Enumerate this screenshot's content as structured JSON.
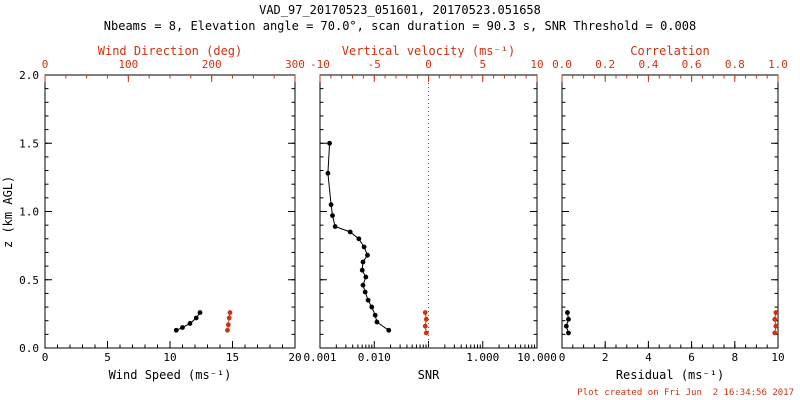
{
  "header": {
    "title": "VAD_97_20170523_051601, 20170523.051658",
    "subtitle": "Nbeams = 8, Elevation angle = 70.0°, scan duration = 90.3 s, SNR Threshold = 0.008"
  },
  "footer": {
    "created": "Plot created on Fri Jun  2 16:34:56 2017"
  },
  "colors": {
    "axis": "#000000",
    "accent_red": "#cc3311",
    "background": "#ffffff"
  },
  "y_axis": {
    "label": "z (km AGL)",
    "min": 0,
    "max": 2,
    "ticks": [
      0,
      0.5,
      1,
      1.5,
      2
    ],
    "tick_labels": [
      "0.0",
      "0.5",
      "1.0",
      "1.5",
      "2.0"
    ],
    "minor_step": 0.1
  },
  "chart_data": [
    {
      "type": "scatter",
      "name": "wind-speed-direction-panel",
      "x_bottom": {
        "label": "Wind Speed (ms⁻¹)",
        "scale": "linear",
        "min": 0,
        "max": 20,
        "ticks": [
          0,
          5,
          10,
          15,
          20
        ],
        "tick_labels": [
          "0",
          "5",
          "10",
          "15",
          "20"
        ],
        "minor_step": 1,
        "color": "#000000"
      },
      "x_top": {
        "label": "Wind Direction (deg)",
        "scale": "linear",
        "min": 0,
        "max": 300,
        "ticks": [
          0,
          100,
          200,
          300
        ],
        "tick_labels": [
          "0",
          "100",
          "200",
          "300"
        ],
        "minor_step": 25,
        "color": "#cc3311"
      },
      "series": [
        {
          "name": "wind-speed",
          "axis": "bottom",
          "color": "#000000",
          "points": [
            [
              10.5,
              0.13
            ],
            [
              11.0,
              0.15
            ],
            [
              11.6,
              0.18
            ],
            [
              12.1,
              0.22
            ],
            [
              12.4,
              0.26
            ]
          ]
        },
        {
          "name": "wind-direction",
          "axis": "top",
          "color": "#cc3311",
          "points": [
            [
              219,
              0.13
            ],
            [
              220,
              0.17
            ],
            [
              221,
              0.22
            ],
            [
              222,
              0.26
            ]
          ]
        }
      ]
    },
    {
      "type": "scatter",
      "name": "snr-vertical-velocity-panel",
      "x_bottom": {
        "label": "SNR",
        "scale": "log",
        "min": 0.001,
        "max": 10,
        "ticks": [
          0.001,
          0.01,
          0.1,
          1,
          10
        ],
        "tick_labels": [
          "0.001",
          "0.010",
          "",
          "1.000",
          "10.000"
        ],
        "color": "#000000"
      },
      "x_top": {
        "label": "Vertical velocity (ms⁻¹)",
        "scale": "linear",
        "min": -10,
        "max": 10,
        "ticks": [
          -10,
          -5,
          0,
          5,
          10
        ],
        "tick_labels": [
          "-10",
          "-5",
          "0",
          "5",
          "10"
        ],
        "minor_step": 1,
        "color": "#cc3311"
      },
      "ref_line": {
        "axis": "top",
        "value": 0,
        "color": "#cc3311",
        "style": "dotted"
      },
      "series": [
        {
          "name": "snr-profile",
          "axis": "bottom",
          "color": "#000000",
          "points": [
            [
              0.0015,
              1.5
            ],
            [
              0.0014,
              1.28
            ],
            [
              0.0016,
              1.05
            ],
            [
              0.0017,
              0.97
            ],
            [
              0.0019,
              0.89
            ],
            [
              0.0036,
              0.85
            ],
            [
              0.0052,
              0.8
            ],
            [
              0.0065,
              0.74
            ],
            [
              0.0075,
              0.68
            ],
            [
              0.0062,
              0.63
            ],
            [
              0.006,
              0.57
            ],
            [
              0.007,
              0.52
            ],
            [
              0.0062,
              0.46
            ],
            [
              0.0068,
              0.41
            ],
            [
              0.0077,
              0.35
            ],
            [
              0.009,
              0.3
            ],
            [
              0.0104,
              0.24
            ],
            [
              0.0112,
              0.19
            ],
            [
              0.0185,
              0.13
            ]
          ]
        },
        {
          "name": "vertical-velocity",
          "axis": "top",
          "color": "#cc3311",
          "points": [
            [
              -0.3,
              0.26
            ],
            [
              -0.2,
              0.21
            ],
            [
              -0.3,
              0.16
            ],
            [
              -0.2,
              0.11
            ]
          ]
        }
      ]
    },
    {
      "type": "scatter",
      "name": "residual-correlation-panel",
      "x_bottom": {
        "label": "Residual (ms⁻¹)",
        "scale": "linear",
        "min": 0,
        "max": 10,
        "ticks": [
          0,
          2,
          4,
          6,
          8,
          10
        ],
        "tick_labels": [
          "0",
          "2",
          "4",
          "6",
          "8",
          "10"
        ],
        "minor_step": 0.5,
        "color": "#000000"
      },
      "x_top": {
        "label": "Correlation",
        "scale": "linear",
        "min": 0,
        "max": 1,
        "ticks": [
          0,
          0.2,
          0.4,
          0.6,
          0.8,
          1
        ],
        "tick_labels": [
          "0.0",
          "0.2",
          "0.4",
          "0.6",
          "0.8",
          "1.0"
        ],
        "minor_step": 0.05,
        "color": "#cc3311"
      },
      "series": [
        {
          "name": "residual",
          "axis": "bottom",
          "color": "#000000",
          "points": [
            [
              0.25,
              0.26
            ],
            [
              0.3,
              0.21
            ],
            [
              0.2,
              0.16
            ],
            [
              0.3,
              0.11
            ]
          ]
        },
        {
          "name": "correlation",
          "axis": "top",
          "color": "#cc3311",
          "points": [
            [
              0.99,
              0.26
            ],
            [
              0.985,
              0.21
            ],
            [
              0.99,
              0.16
            ],
            [
              0.985,
              0.11
            ]
          ]
        }
      ]
    }
  ]
}
